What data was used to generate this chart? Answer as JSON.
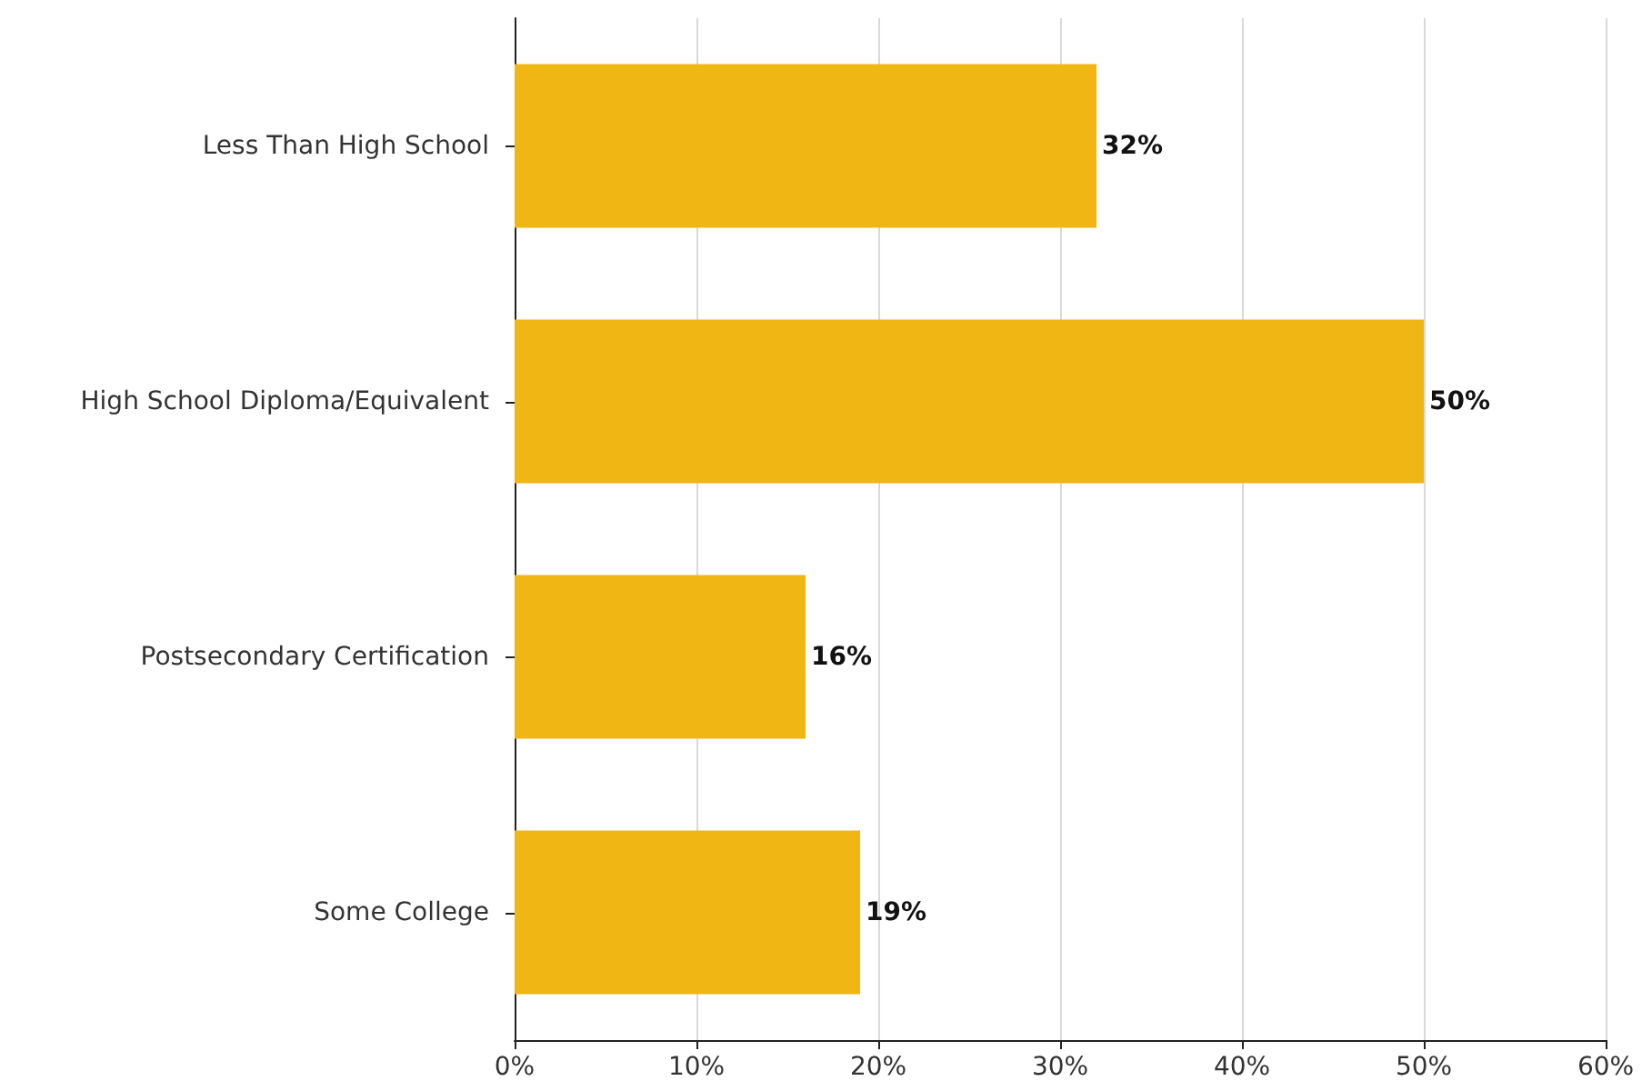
{
  "chart_data": {
    "type": "bar",
    "orientation": "horizontal",
    "categories": [
      "Less Than High School",
      "High School Diploma/Equivalent",
      "Postsecondary Certification",
      "Some College"
    ],
    "values": [
      32,
      50,
      16,
      19
    ],
    "value_labels": [
      "32%",
      "50%",
      "16%",
      "19%"
    ],
    "color": "#f0b614",
    "xlim": [
      0,
      60
    ],
    "xticks": [
      {
        "value": 0,
        "label": "0%"
      },
      {
        "value": 10,
        "label": "10%"
      },
      {
        "value": 20,
        "label": "20%"
      },
      {
        "value": 30,
        "label": "30%"
      },
      {
        "value": 40,
        "label": "40%"
      },
      {
        "value": 50,
        "label": "50%"
      },
      {
        "value": 60,
        "label": "60%"
      }
    ],
    "grid": "x"
  }
}
